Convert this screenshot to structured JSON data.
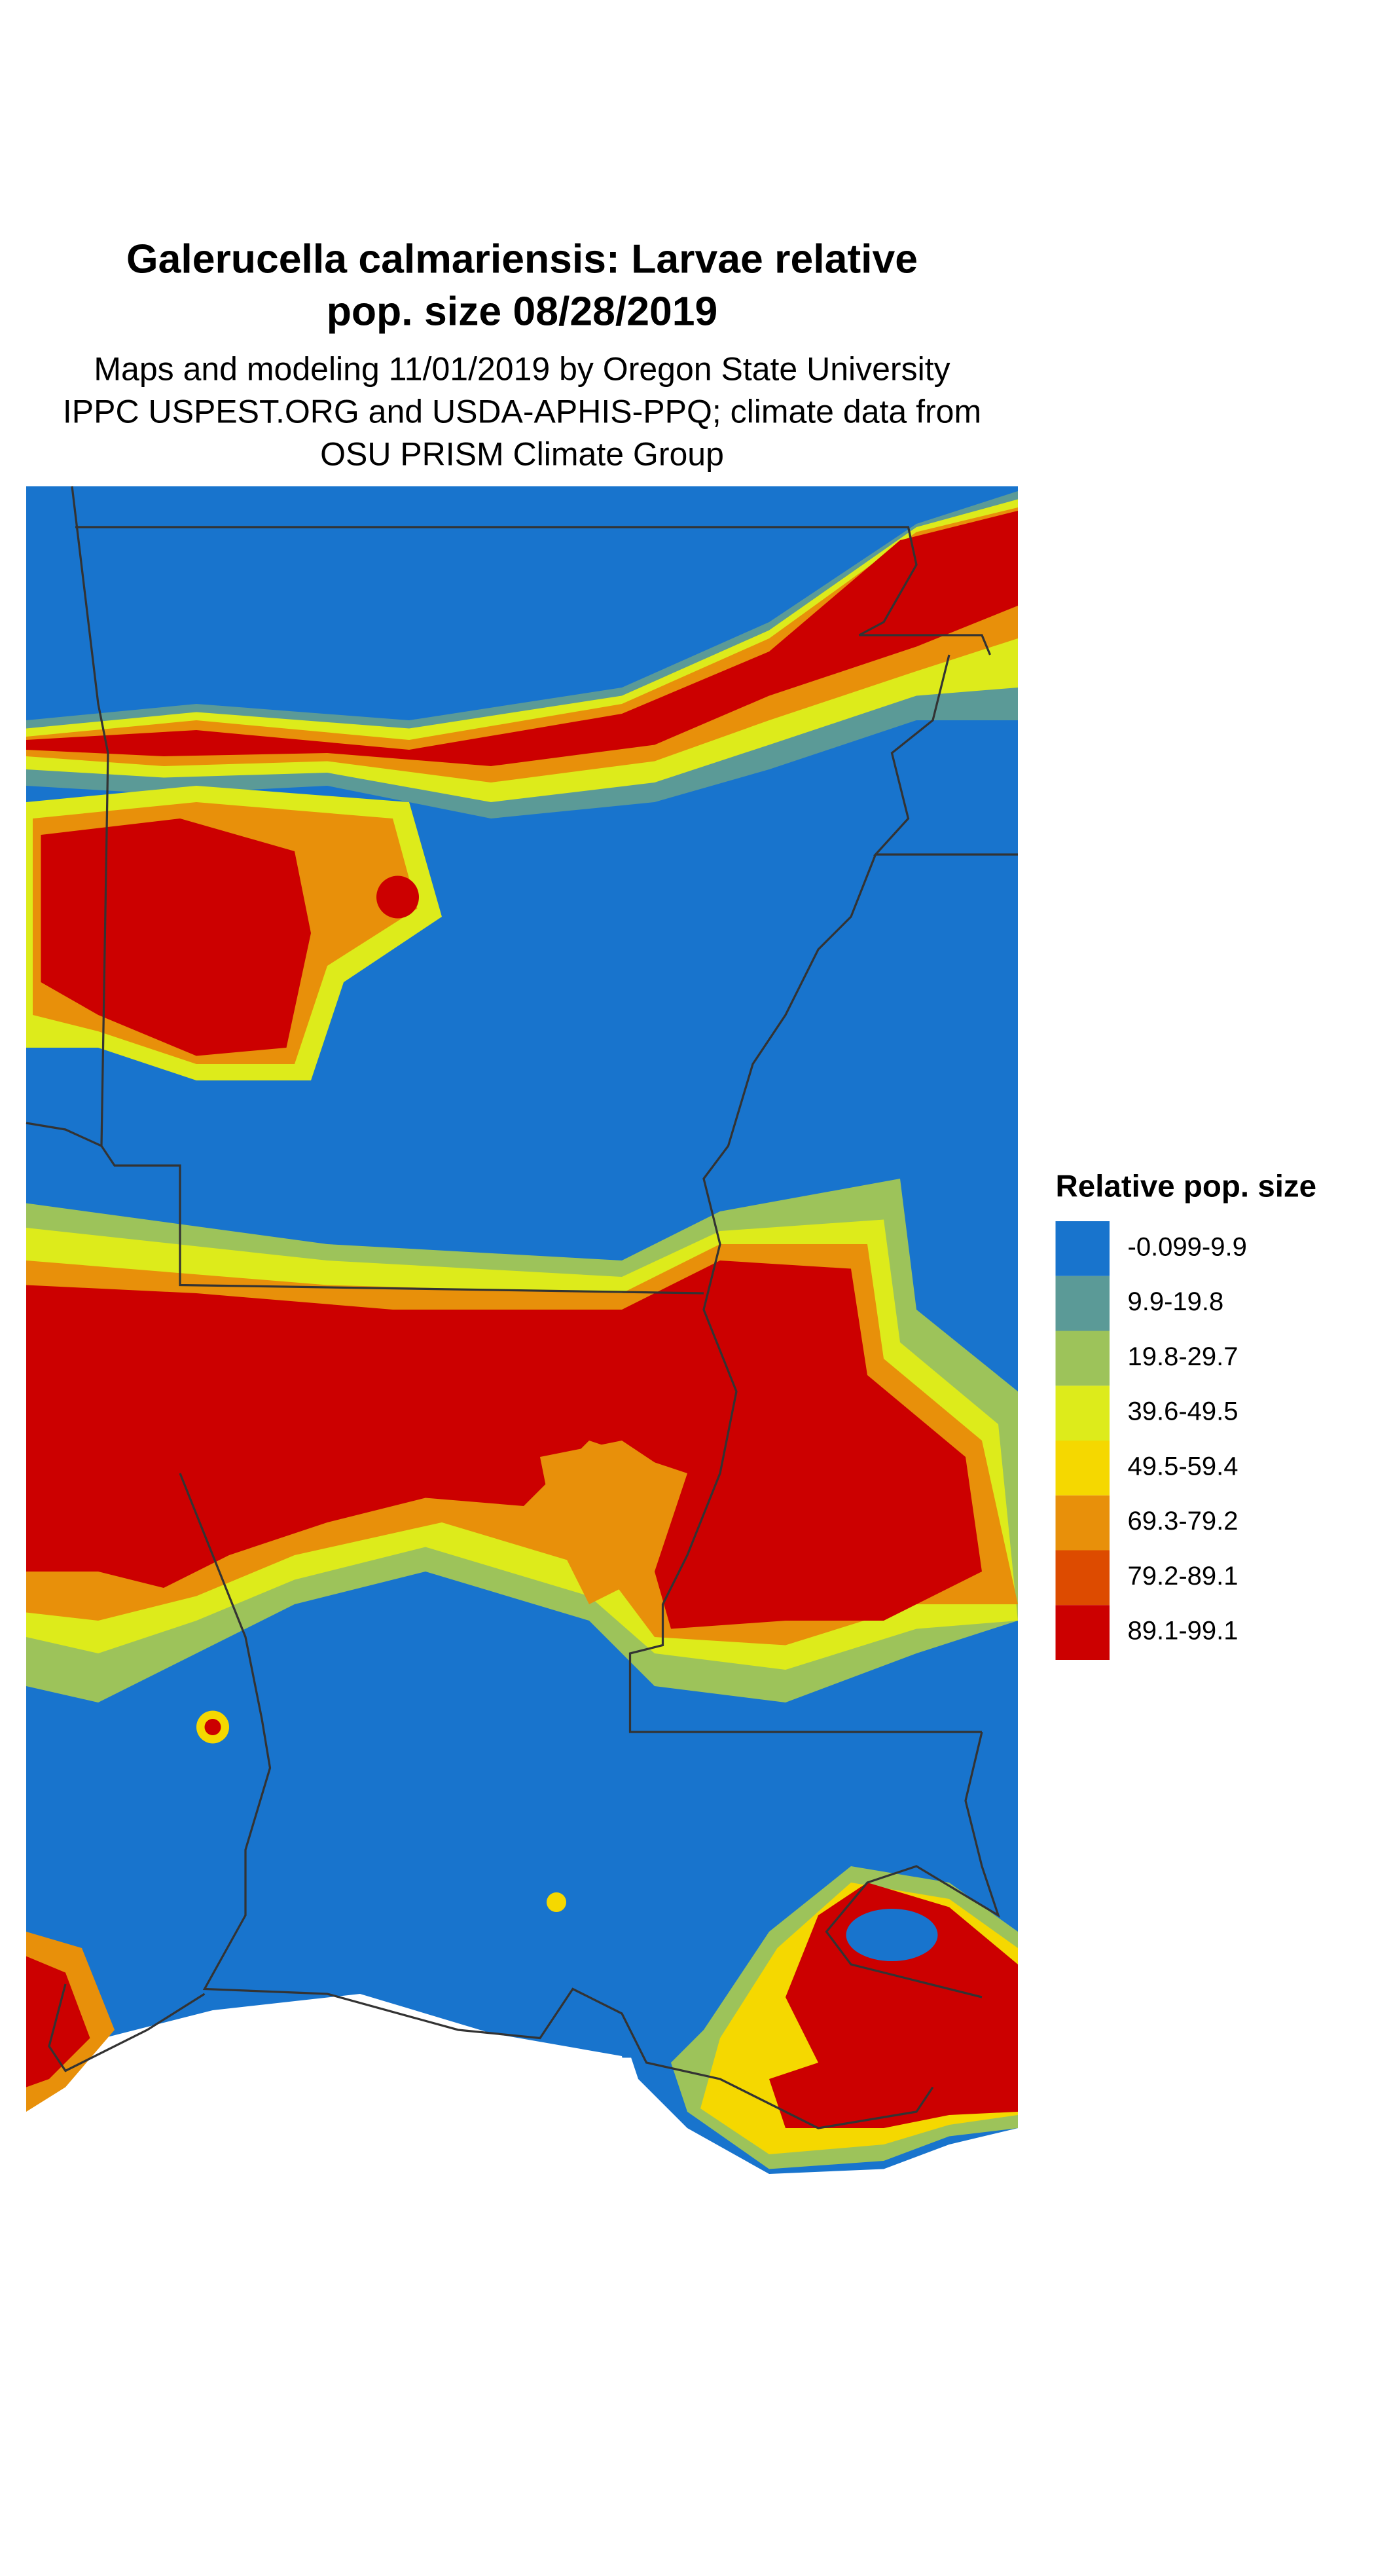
{
  "title": [
    "Galerucella calmariensis: Larvae relative",
    "pop. size 08/28/2019"
  ],
  "subtitle": [
    "Maps and modeling 11/01/2019 by Oregon State University",
    "IPPC USPEST.ORG and USDA-APHIS-PPQ; climate data from",
    "OSU PRISM Climate Group"
  ],
  "legend": {
    "title": "Relative pop. size",
    "items": [
      {
        "label": "-0.099-9.9",
        "color": "#1874cd"
      },
      {
        "label": "9.9-19.8",
        "color": "#5b9a97"
      },
      {
        "label": "19.8-29.7",
        "color": "#9dc35a"
      },
      {
        "label": "39.6-49.5",
        "color": "#ddeb1b"
      },
      {
        "label": "49.5-59.4",
        "color": "#f5d800"
      },
      {
        "label": "69.3-79.2",
        "color": "#e8900a"
      },
      {
        "label": "79.2-89.1",
        "color": "#dd4b00"
      },
      {
        "label": "89.1-99.1",
        "color": "#cc0000"
      }
    ]
  }
}
